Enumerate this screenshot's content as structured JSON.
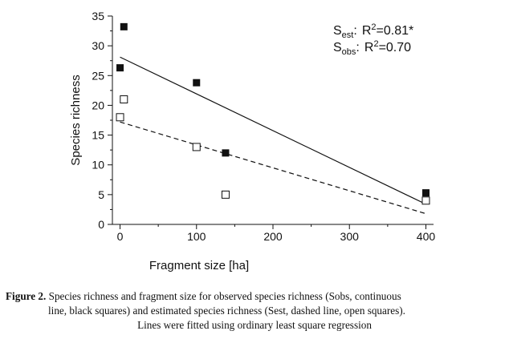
{
  "chart_data": {
    "type": "scatter",
    "title": "",
    "xlabel": "Fragment size [ha]",
    "ylabel": "Species richness",
    "xlim": [
      -10,
      410
    ],
    "ylim": [
      0,
      35
    ],
    "x_ticks": [
      0,
      100,
      200,
      300,
      400
    ],
    "y_ticks": [
      0,
      5,
      10,
      15,
      20,
      25,
      30,
      35
    ],
    "grid": false,
    "series": [
      {
        "marker": "filled-square",
        "color": "#111111",
        "points": [
          [
            0,
            26.3
          ],
          [
            5,
            33.2
          ],
          [
            100,
            23.8
          ],
          [
            138,
            12.0
          ],
          [
            400,
            5.3
          ]
        ],
        "fit": {
          "style": "solid",
          "from": [
            0,
            28.1
          ],
          "to": [
            400,
            3.4
          ]
        }
      },
      {
        "marker": "open-square",
        "color": "#111111",
        "points": [
          [
            0,
            18.0
          ],
          [
            5,
            21.0
          ],
          [
            100,
            13.0
          ],
          [
            138,
            5.0
          ],
          [
            400,
            4.0
          ]
        ],
        "fit": {
          "style": "dashed",
          "from": [
            0,
            17.2
          ],
          "to": [
            400,
            1.8
          ]
        }
      }
    ],
    "annotations": {
      "est": {
        "s": "S",
        "sub": "est",
        "colon": ":",
        "r": "R",
        "sup": "2",
        "value": "=0.81*"
      },
      "obs": {
        "s": "S",
        "sub": "obs",
        "colon": ":",
        "r": "R",
        "sup": "2",
        "value": "=0.70"
      }
    }
  },
  "caption": {
    "label": "Figure 2.",
    "line1": " Species richness and fragment size for observed species richness (Sobs, continuous",
    "line2": "line, black squares) and estimated species richness (Sest, dashed line, open squares).",
    "line3": "Lines were fitted using ordinary least square regression"
  }
}
